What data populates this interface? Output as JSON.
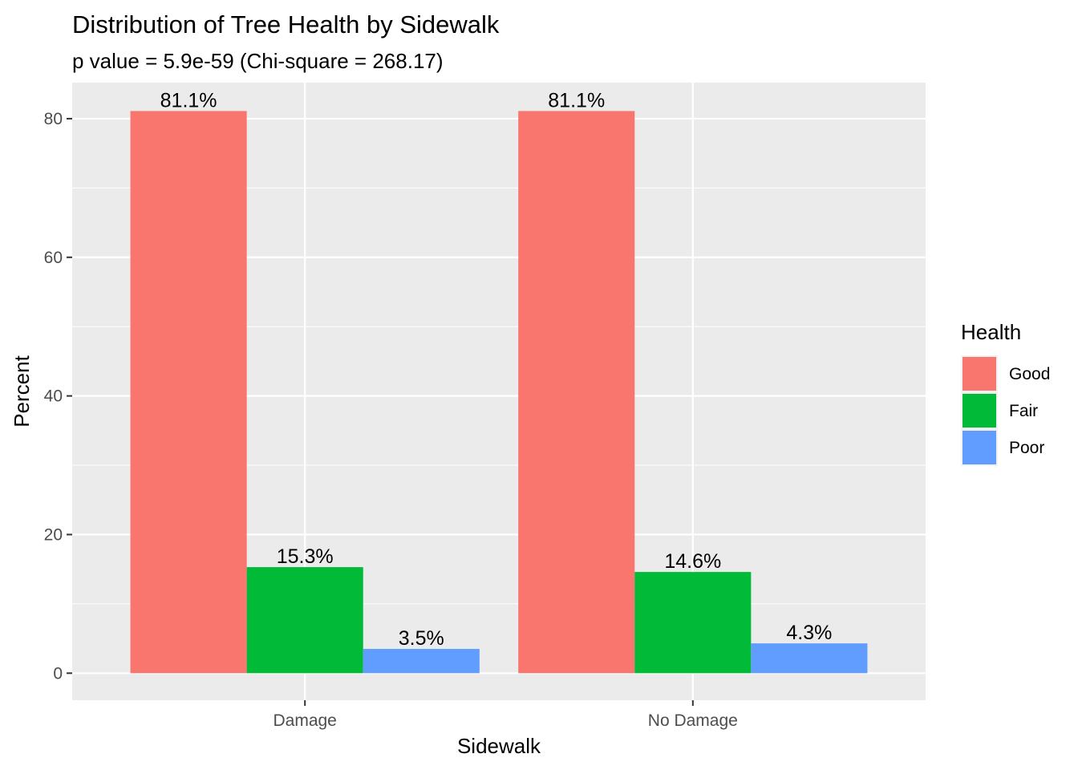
{
  "chart_data": {
    "type": "bar",
    "title": "Distribution of Tree Health by Sidewalk",
    "subtitle": "p value = 5.9e-59 (Chi-square = 268.17)",
    "xlabel": "Sidewalk",
    "ylabel": "Percent",
    "categories": [
      "Damage",
      "No Damage"
    ],
    "series": [
      {
        "name": "Good",
        "color": "#F8766D",
        "values": [
          81.1,
          81.1
        ],
        "labels": [
          "81.1%",
          "81.1%"
        ]
      },
      {
        "name": "Fair",
        "color": "#00BA38",
        "values": [
          15.3,
          14.6
        ],
        "labels": [
          "15.3%",
          "14.6%"
        ]
      },
      {
        "name": "Poor",
        "color": "#619CFF",
        "values": [
          3.5,
          4.3
        ],
        "labels": [
          "3.5%",
          "4.3%"
        ]
      }
    ],
    "yticks": [
      0,
      20,
      40,
      60,
      80
    ],
    "ylim": [
      -3.9,
      85.2
    ],
    "legend": {
      "title": "Health",
      "position": "right"
    },
    "grid": true,
    "panel_background": "#EBEBEB",
    "grid_color": "#FFFFFF"
  }
}
